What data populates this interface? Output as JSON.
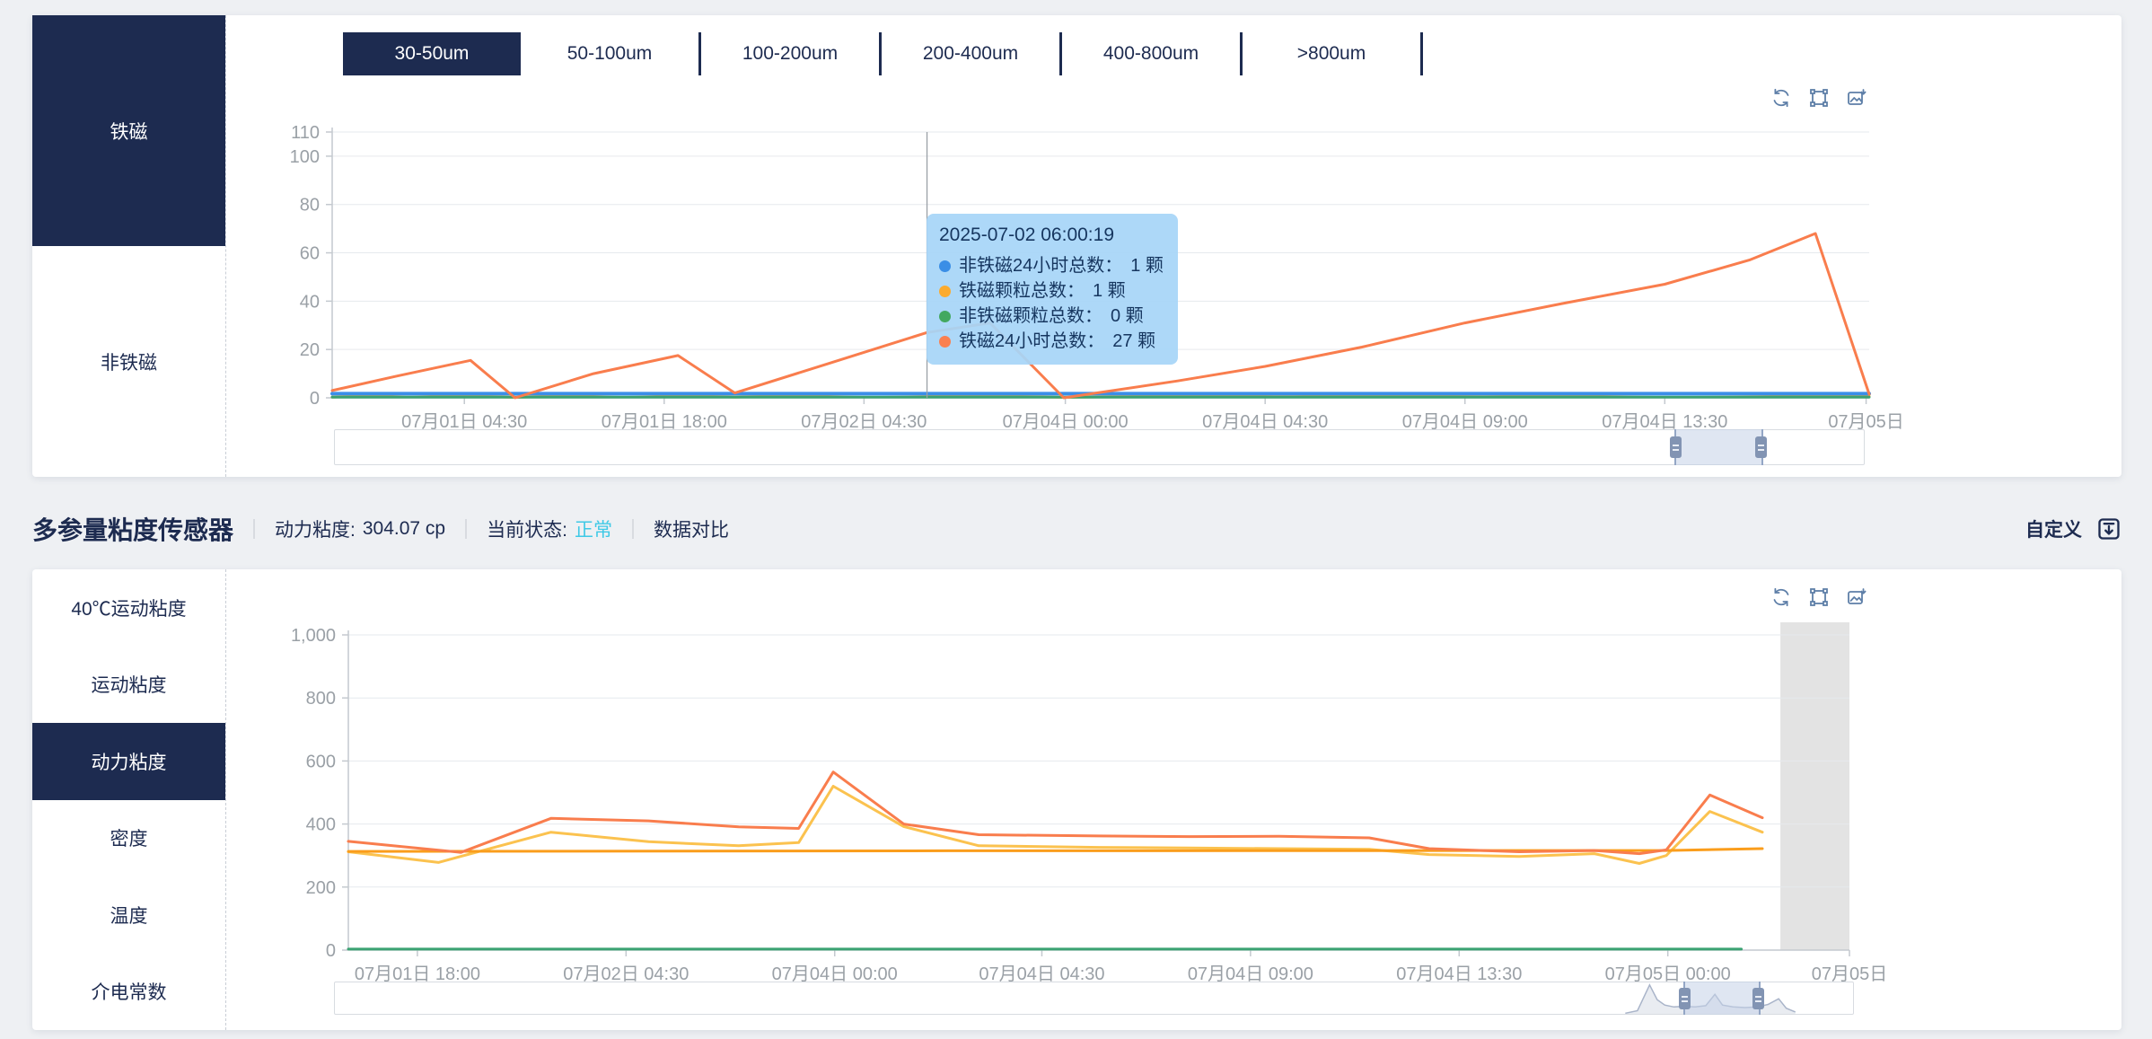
{
  "colors": {
    "navy": "#1d2b50",
    "page_bg": "#eef0f3",
    "axis_label": "#9aa0a6",
    "gridline": "#e6e9ed",
    "axis_line": "#c4c9cf",
    "tooltip_bg": "#a7d5f8",
    "status_cyan": "#3fc9e6",
    "toolbox_icon": "#5e7fa8",
    "band_gray": "#e3e3e3"
  },
  "panel1": {
    "sidebar": [
      {
        "label": "铁磁",
        "selected": true
      },
      {
        "label": "非铁磁",
        "selected": false
      }
    ],
    "tabs": [
      {
        "label": "30-50um",
        "selected": true
      },
      {
        "label": "50-100um",
        "selected": false
      },
      {
        "label": "100-200um",
        "selected": false
      },
      {
        "label": "200-400um",
        "selected": false
      },
      {
        "label": "400-800um",
        "selected": false
      },
      {
        "label": ">800um",
        "selected": false
      }
    ],
    "toolbox_icons": [
      "restore",
      "box-zoom",
      "save-image"
    ],
    "tooltip": {
      "title": "2025-07-02 06:00:19",
      "items": [
        {
          "color": "#3a8ee6",
          "label": "非铁磁24小时总数：",
          "value": "1 颗"
        },
        {
          "color": "#fbab2f",
          "label": "铁磁颗粒总数：",
          "value": "1 颗"
        },
        {
          "color": "#43a860",
          "label": "非铁磁颗粒总数：",
          "value": "0 颗"
        },
        {
          "color": "#fa8050",
          "label": "铁磁24小时总数：",
          "value": "27 颗"
        }
      ]
    },
    "datazoom": {
      "selection_start_pct": 87.6,
      "selection_end_pct": 93.2
    },
    "chart_data": {
      "type": "line",
      "ylim": [
        0,
        110
      ],
      "yticks": [
        {
          "v": 0,
          "label": "0"
        },
        {
          "v": 20,
          "label": "20"
        },
        {
          "v": 40,
          "label": "40"
        },
        {
          "v": 60,
          "label": "60"
        },
        {
          "v": 80,
          "label": "80"
        },
        {
          "v": 100,
          "label": "100"
        },
        {
          "v": 110,
          "label": "110"
        }
      ],
      "xticks": [
        {
          "f": 0.086,
          "label": "07月01日 04:30"
        },
        {
          "f": 0.216,
          "label": "07月01日 18:00"
        },
        {
          "f": 0.346,
          "label": "07月02日 04:30"
        },
        {
          "f": 0.477,
          "label": "07月04日 00:00"
        },
        {
          "f": 0.607,
          "label": "07月04日 04:30"
        },
        {
          "f": 0.737,
          "label": "07月04日 09:00"
        },
        {
          "f": 0.867,
          "label": "07月04日 13:30"
        },
        {
          "f": 0.998,
          "label": "07月05日"
        }
      ],
      "axis_pointer_fraction": 0.387,
      "series": [
        {
          "name": "铁磁颗粒总数",
          "color": "#fbab2f",
          "width": 3,
          "points": [
            [
              0,
              0.3
            ],
            [
              0.05,
              1.6
            ],
            [
              0.119,
              0.2
            ],
            [
              0.19,
              1.7
            ],
            [
              0.262,
              0.3
            ],
            [
              0.35,
              1.8
            ],
            [
              0.476,
              0.2
            ],
            [
              0.62,
              1.4
            ],
            [
              0.75,
              0.4
            ],
            [
              0.87,
              1.8
            ],
            [
              0.95,
              1.2
            ],
            [
              1,
              0.6
            ]
          ]
        },
        {
          "name": "非铁磁颗粒总数",
          "color": "#3ba272",
          "width": 3,
          "points": [
            [
              0,
              0.3
            ],
            [
              1,
              0.3
            ]
          ]
        },
        {
          "name": "非铁磁24小时总数",
          "color": "#3b8ee8",
          "width": 4,
          "points": [
            [
              0,
              1.7
            ],
            [
              1,
              1.7
            ]
          ]
        },
        {
          "name": "铁磁24小时总数",
          "color": "#f97d4d",
          "width": 3,
          "points": [
            [
              0,
              3
            ],
            [
              0.042,
              9
            ],
            [
              0.09,
              15.5
            ],
            [
              0.119,
              0
            ],
            [
              0.17,
              10
            ],
            [
              0.225,
              17.5
            ],
            [
              0.262,
              2
            ],
            [
              0.322,
              14
            ],
            [
              0.387,
              27
            ],
            [
              0.428,
              31
            ],
            [
              0.476,
              0
            ],
            [
              0.55,
              7
            ],
            [
              0.607,
              13
            ],
            [
              0.67,
              21
            ],
            [
              0.737,
              31
            ],
            [
              0.8,
              39
            ],
            [
              0.867,
              47
            ],
            [
              0.922,
              57
            ],
            [
              0.965,
              68
            ],
            [
              1,
              1.5
            ]
          ]
        }
      ]
    }
  },
  "panel2": {
    "header": {
      "title": "多参量粘度传感器",
      "metric_label": "动力粘度:",
      "metric_value": "304.07 cp",
      "status_label": "当前状态:",
      "status_value": "正常",
      "status_color": "#3fc9e6",
      "compare_label": "数据对比",
      "custom_label": "自定义"
    },
    "sidebar": [
      {
        "label": "40℃运动粘度",
        "selected": false
      },
      {
        "label": "运动粘度",
        "selected": false
      },
      {
        "label": "动力粘度",
        "selected": true
      },
      {
        "label": "密度",
        "selected": false
      },
      {
        "label": "温度",
        "selected": false
      },
      {
        "label": "介电常数",
        "selected": false
      }
    ],
    "toolbox_icons": [
      "restore",
      "box-zoom",
      "save-image"
    ],
    "datazoom": {
      "selection_start_pct": 88.8,
      "selection_end_pct": 93.7,
      "preview": [
        [
          0.85,
          0.02
        ],
        [
          0.858,
          0.1
        ],
        [
          0.866,
          0.92
        ],
        [
          0.871,
          0.45
        ],
        [
          0.876,
          0.28
        ],
        [
          0.882,
          0.22
        ],
        [
          0.889,
          0.24
        ],
        [
          0.896,
          0.22
        ],
        [
          0.903,
          0.26
        ],
        [
          0.909,
          0.62
        ],
        [
          0.914,
          0.28
        ],
        [
          0.921,
          0.22
        ],
        [
          0.929,
          0.2
        ],
        [
          0.937,
          0.22
        ],
        [
          0.944,
          0.3
        ],
        [
          0.951,
          0.48
        ],
        [
          0.956,
          0.18
        ],
        [
          0.962,
          0.06
        ]
      ]
    },
    "chart_data": {
      "type": "line",
      "ylim": [
        0,
        1000
      ],
      "yticks": [
        {
          "v": 0,
          "label": "0"
        },
        {
          "v": 200,
          "label": "200"
        },
        {
          "v": 400,
          "label": "400"
        },
        {
          "v": 600,
          "label": "600"
        },
        {
          "v": 800,
          "label": "800"
        },
        {
          "v": 1000,
          "label": "1,000"
        }
      ],
      "xticks": [
        {
          "f": 0.046,
          "label": "07月01日 18:00"
        },
        {
          "f": 0.185,
          "label": "07月02日 04:30"
        },
        {
          "f": 0.324,
          "label": "07月04日 00:00"
        },
        {
          "f": 0.462,
          "label": "07月04日 04:30"
        },
        {
          "f": 0.601,
          "label": "07月04日 09:00"
        },
        {
          "f": 0.74,
          "label": "07月04日 13:30"
        },
        {
          "f": 0.879,
          "label": "07月05日 00:00"
        },
        {
          "f": 1.0,
          "label": "07月05日"
        }
      ],
      "no_data_band": {
        "start_fraction": 0.954,
        "end_fraction": 1.0,
        "color": "#e3e3e3"
      },
      "series": [
        {
          "name": "series_yellow",
          "color": "#fbc24f",
          "width": 3,
          "points": [
            [
              0,
              312
            ],
            [
              0.06,
              278
            ],
            [
              0.135,
              374
            ],
            [
              0.2,
              344
            ],
            [
              0.26,
              331
            ],
            [
              0.3,
              341
            ],
            [
              0.323,
              520
            ],
            [
              0.37,
              392
            ],
            [
              0.42,
              331
            ],
            [
              0.5,
              326
            ],
            [
              0.56,
              324
            ],
            [
              0.62,
              322
            ],
            [
              0.68,
              320
            ],
            [
              0.72,
              303
            ],
            [
              0.78,
              297
            ],
            [
              0.83,
              306
            ],
            [
              0.86,
              275
            ],
            [
              0.878,
              300
            ],
            [
              0.907,
              440
            ],
            [
              0.942,
              374
            ]
          ]
        },
        {
          "name": "series_orange_flat",
          "color": "#fa9d1c",
          "width": 3,
          "points": [
            [
              0,
              313
            ],
            [
              0.4,
              315
            ],
            [
              0.878,
              316
            ],
            [
              0.942,
              322
            ]
          ]
        },
        {
          "name": "series_red",
          "color": "#f97d4d",
          "width": 3,
          "points": [
            [
              0,
              345
            ],
            [
              0.075,
              310
            ],
            [
              0.135,
              418
            ],
            [
              0.2,
              410
            ],
            [
              0.26,
              391
            ],
            [
              0.3,
              386
            ],
            [
              0.323,
              565
            ],
            [
              0.37,
              400
            ],
            [
              0.42,
              366
            ],
            [
              0.5,
              362
            ],
            [
              0.56,
              360
            ],
            [
              0.62,
              361
            ],
            [
              0.68,
              356
            ],
            [
              0.72,
              322
            ],
            [
              0.78,
              312
            ],
            [
              0.83,
              316
            ],
            [
              0.86,
              306
            ],
            [
              0.878,
              318
            ],
            [
              0.907,
              492
            ],
            [
              0.942,
              420
            ]
          ]
        },
        {
          "name": "series_green",
          "color": "#3ba272",
          "width": 3,
          "points": [
            [
              0,
              3
            ],
            [
              0.928,
              3
            ]
          ]
        }
      ]
    }
  }
}
